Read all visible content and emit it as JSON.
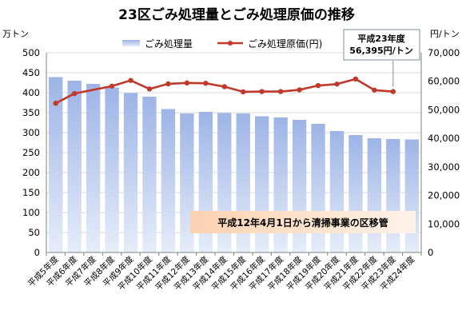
{
  "chart_data": {
    "type": "bar+line",
    "title": "23区ごみ処理量とごみ処理原価の推移",
    "categories": [
      "平成5年度",
      "平成6年度",
      "平成7年度",
      "平成8年度",
      "平成9年度",
      "平成10年度",
      "平成11年度",
      "平成12年度",
      "平成13年度",
      "平成14年度",
      "平成15年度",
      "平成16年度",
      "平成17年度",
      "平成18年度",
      "平成19年度",
      "平成20年度",
      "平成21年度",
      "平成22年度",
      "平成23年度",
      "平成24年度"
    ],
    "series": [
      {
        "name": "ごみ処理量",
        "type": "bar",
        "axis": "left",
        "values": [
          439,
          430,
          422,
          413,
          399,
          390,
          359,
          348,
          352,
          349,
          348,
          341,
          338,
          332,
          322,
          304,
          294,
          286,
          284,
          283
        ],
        "color": "#9fb7e8"
      },
      {
        "name": "ごみ処理原価(円)",
        "type": "line",
        "axis": "right",
        "values": [
          52300,
          55700,
          null,
          58300,
          60300,
          57300,
          59100,
          59400,
          59300,
          58100,
          56300,
          56400,
          56400,
          57000,
          58500,
          59000,
          60800,
          56900,
          56395,
          null
        ],
        "color": "#c0392b"
      }
    ],
    "left_axis": {
      "unit": "万トン",
      "min": 0,
      "max": 500,
      "step": 50,
      "ticks": [
        "0",
        "50",
        "100",
        "150",
        "200",
        "250",
        "300",
        "350",
        "400",
        "450",
        "500"
      ]
    },
    "right_axis": {
      "unit": "円/トン",
      "min": 0,
      "max": 70000,
      "step": 10000,
      "ticks": [
        "0",
        "10,000",
        "20,000",
        "30,000",
        "40,000",
        "50,000",
        "60,000",
        "70,000"
      ]
    },
    "grid": true,
    "legend_position": "top",
    "callout": {
      "line1": "平成23年度",
      "line2": "56,395円/トン",
      "category_index": 18
    },
    "annotation": "平成12年4月1日から清掃事業の区移管"
  }
}
